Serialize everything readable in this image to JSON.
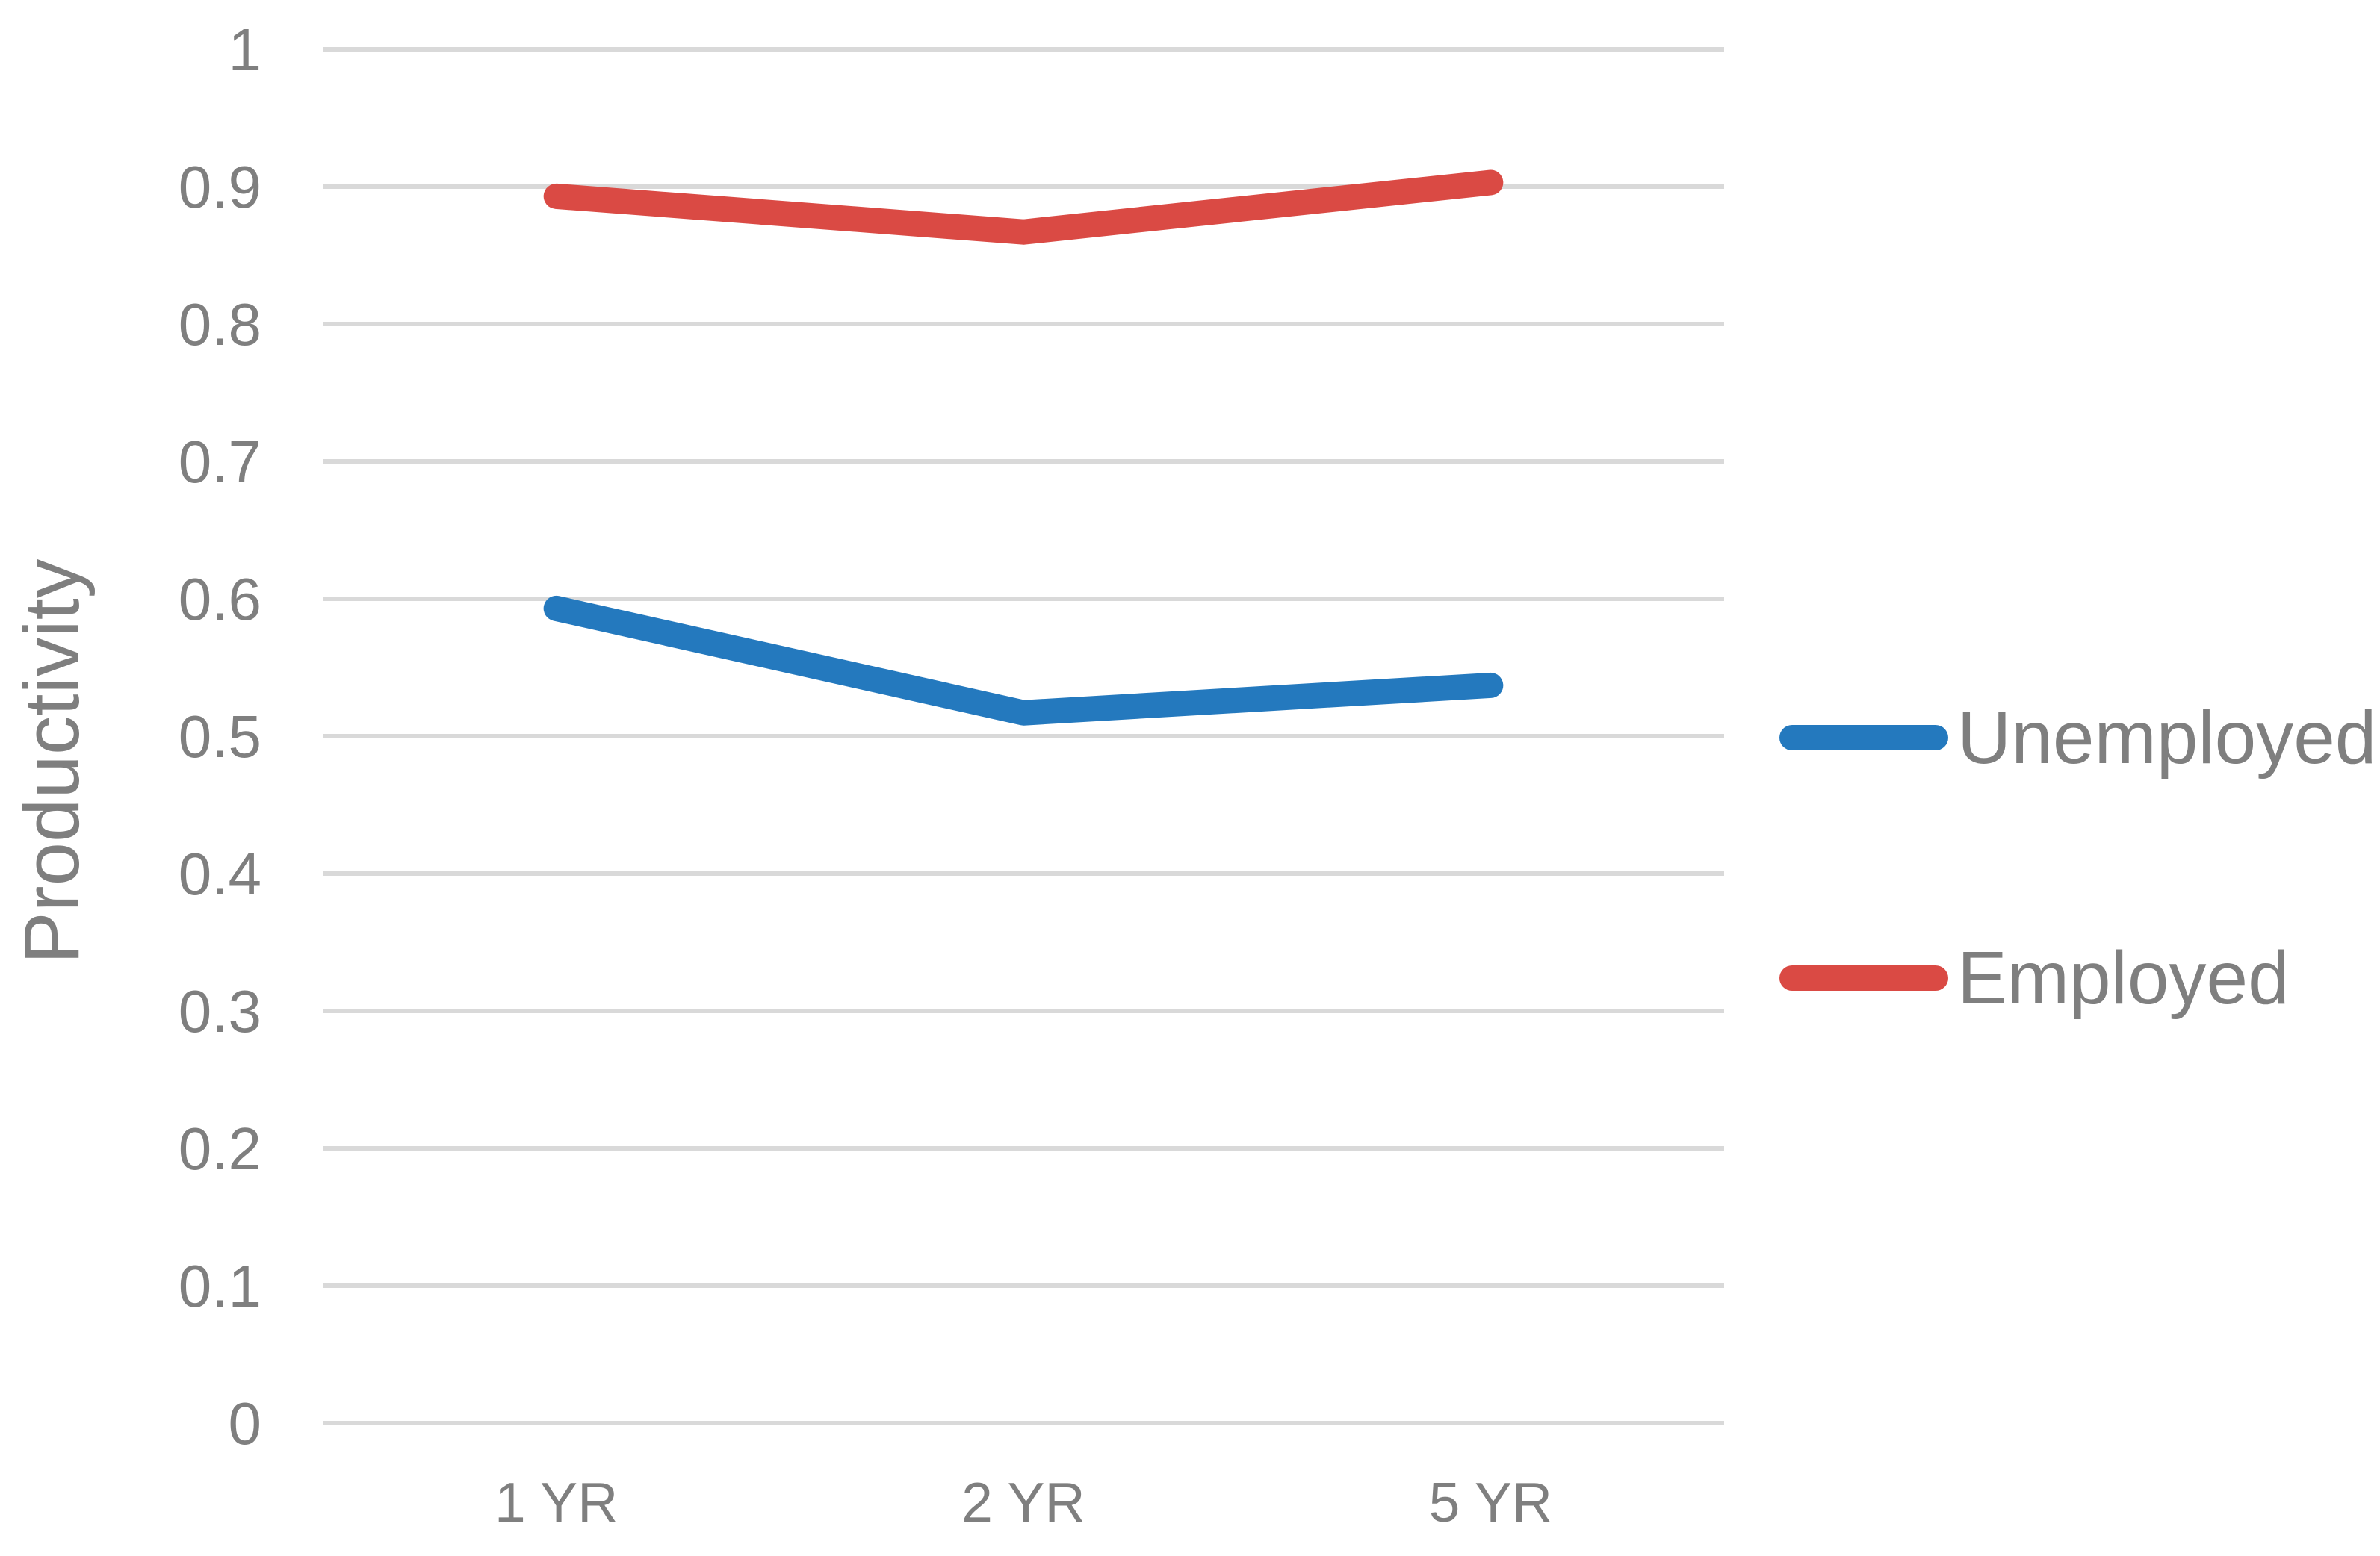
{
  "chart_data": {
    "type": "line",
    "categories": [
      "1 YR",
      "2 YR",
      "5 YR"
    ],
    "series": [
      {
        "name": "Unemployed",
        "color": "#2479BE",
        "values": [
          0.593,
          0.517,
          0.537
        ]
      },
      {
        "name": "Employed",
        "color": "#DA4A44",
        "values": [
          0.893,
          0.867,
          0.903
        ]
      }
    ],
    "title": "",
    "xlabel": "",
    "ylabel": "Productivity",
    "ylim": [
      0,
      1
    ],
    "ytick_step": 0.1,
    "ytick_labels": [
      "0",
      "0.1",
      "0.2",
      "0.3",
      "0.4",
      "0.5",
      "0.6",
      "0.7",
      "0.8",
      "0.9",
      "1"
    ],
    "grid": "horizontal",
    "gridline_color": "#D9D9D9",
    "axis_text_color": "#7F7F7F",
    "legend_position": "right"
  }
}
